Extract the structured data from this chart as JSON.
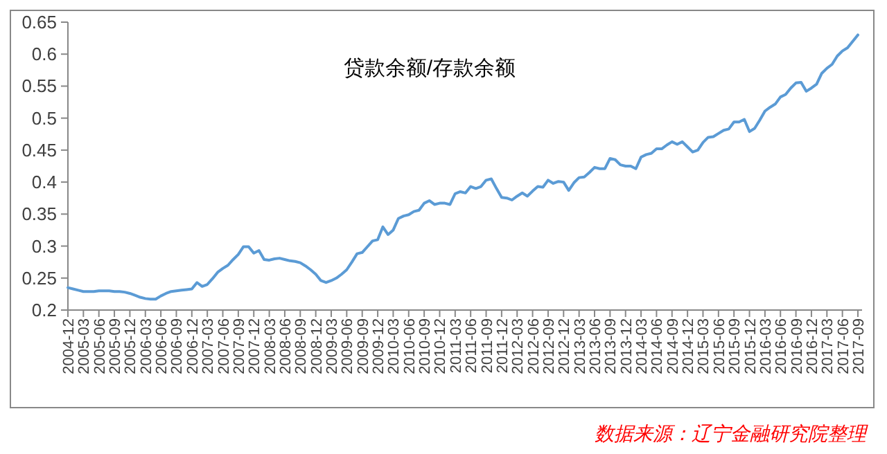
{
  "chart_data": {
    "type": "line",
    "title": "贷款余额/存款余额",
    "categories": [
      "2004-12",
      null,
      null,
      "2005-03",
      null,
      null,
      "2005-06",
      null,
      null,
      "2005-09",
      null,
      null,
      "2005-12",
      null,
      null,
      "2006-03",
      null,
      null,
      "2006-06",
      null,
      null,
      "2006-09",
      null,
      null,
      "2006-12",
      null,
      null,
      "2007-03",
      null,
      null,
      "2007-06",
      null,
      null,
      "2007-09",
      null,
      null,
      "2007-12",
      null,
      null,
      "2008-03",
      null,
      null,
      "2008-06",
      null,
      null,
      "2008-09",
      null,
      null,
      "2008-12",
      null,
      null,
      "2009-03",
      null,
      null,
      "2009-06",
      null,
      null,
      "2009-09",
      null,
      null,
      "2009-12",
      null,
      null,
      "2010-03",
      null,
      null,
      "2010-06",
      null,
      null,
      "2010-09",
      null,
      null,
      "2010-12",
      null,
      null,
      "2011-03",
      null,
      null,
      "2011-06",
      null,
      null,
      "2011-09",
      null,
      null,
      "2011-12",
      null,
      null,
      "2012-03",
      null,
      null,
      "2012-06",
      null,
      null,
      "2012-09",
      null,
      null,
      "2012-12",
      null,
      null,
      "2013-03",
      null,
      null,
      "2013-06",
      null,
      null,
      "2013-09",
      null,
      null,
      "2013-12",
      null,
      null,
      "2014-03",
      null,
      null,
      "2014-06",
      null,
      null,
      "2014-09",
      null,
      null,
      "2014-12",
      null,
      null,
      "2015-03",
      null,
      null,
      "2015-06",
      null,
      null,
      "2015-09",
      null,
      null,
      "2015-12",
      null,
      null,
      "2016-03",
      null,
      null,
      "2016-06",
      null,
      null,
      "2016-09",
      null,
      null,
      "2016-12",
      null,
      null,
      "2017-03",
      null,
      null,
      "2017-06",
      null,
      null,
      "2017-09"
    ],
    "series": [
      {
        "color": "#5b9bd5",
        "values": [
          0.235,
          0.233,
          0.231,
          0.229,
          0.229,
          0.229,
          0.23,
          0.23,
          0.23,
          0.229,
          0.229,
          0.228,
          0.226,
          0.223,
          0.22,
          0.218,
          0.217,
          0.217,
          0.222,
          0.226,
          0.229,
          0.23,
          0.231,
          0.232,
          0.233,
          0.243,
          0.237,
          0.24,
          0.249,
          0.259,
          0.265,
          0.27,
          0.279,
          0.287,
          0.299,
          0.299,
          0.289,
          0.293,
          0.279,
          0.278,
          0.28,
          0.281,
          0.279,
          0.277,
          0.276,
          0.274,
          0.269,
          0.263,
          0.256,
          0.246,
          0.243,
          0.246,
          0.25,
          0.256,
          0.263,
          0.275,
          0.288,
          0.29,
          0.299,
          0.308,
          0.31,
          0.33,
          0.318,
          0.325,
          0.343,
          0.347,
          0.349,
          0.354,
          0.356,
          0.367,
          0.371,
          0.365,
          0.367,
          0.367,
          0.365,
          0.382,
          0.385,
          0.383,
          0.393,
          0.39,
          0.393,
          0.403,
          0.405,
          0.39,
          0.376,
          0.375,
          0.372,
          0.378,
          0.383,
          0.378,
          0.386,
          0.393,
          0.392,
          0.403,
          0.398,
          0.401,
          0.4,
          0.387,
          0.399,
          0.407,
          0.408,
          0.415,
          0.423,
          0.421,
          0.421,
          0.437,
          0.435,
          0.427,
          0.425,
          0.425,
          0.421,
          0.439,
          0.443,
          0.445,
          0.452,
          0.452,
          0.458,
          0.463,
          0.459,
          0.463,
          0.455,
          0.447,
          0.45,
          0.462,
          0.47,
          0.471,
          0.476,
          0.481,
          0.483,
          0.494,
          0.494,
          0.498,
          0.479,
          0.484,
          0.497,
          0.511,
          0.517,
          0.522,
          0.533,
          0.537,
          0.547,
          0.555,
          0.556,
          0.542,
          0.547,
          0.553,
          0.57,
          0.578,
          0.584,
          0.597,
          0.605,
          0.61,
          0.62,
          0.63
        ]
      }
    ],
    "ylim": [
      0.2,
      0.65
    ],
    "yticks": [
      0.2,
      0.25,
      0.3,
      0.35,
      0.4,
      0.45,
      0.5,
      0.55,
      0.6,
      0.65
    ],
    "annotations": [
      "数据来源：辽宁金融研究院整理"
    ]
  }
}
